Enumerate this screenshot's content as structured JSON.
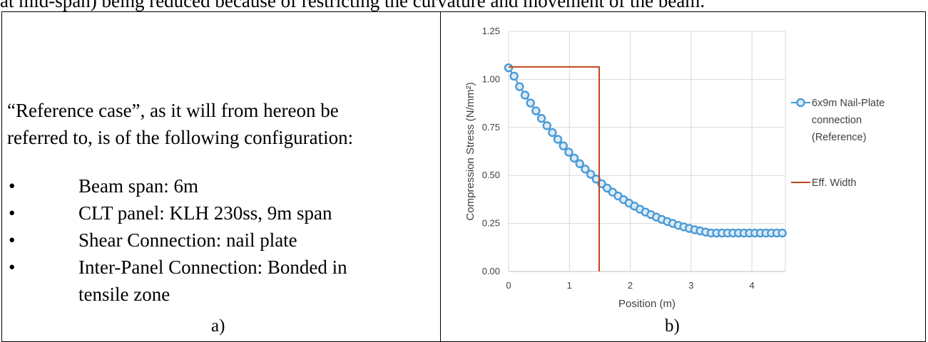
{
  "top_text": "at mid-span) being reduced because of restricting the curvature and movement of the beam.",
  "panel_a": {
    "intro_line1": "“Reference case”, as it will from hereon be",
    "intro_line2": "referred to, is of the following configuration:",
    "bullets": [
      {
        "line1": "Beam span: 6m",
        "line2": ""
      },
      {
        "line1": "CLT panel: KLH 230ss, 9m span",
        "line2": ""
      },
      {
        "line1": "Shear Connection: nail plate",
        "line2": ""
      },
      {
        "line1": "Inter-Panel Connection: Bonded in",
        "line2": "tensile zone"
      }
    ],
    "label": "a)"
  },
  "panel_b": {
    "label": "b)"
  },
  "chart_data": {
    "type": "line",
    "xlabel": "Position (m)",
    "ylabel": "Compression Stress (N/mm²)",
    "xlim": [
      0,
      4.55
    ],
    "ylim": [
      0,
      1.25
    ],
    "x_ticks": [
      "0",
      "1",
      "2",
      "3",
      "4"
    ],
    "y_ticks": [
      "0.00",
      "0.25",
      "0.50",
      "0.75",
      "1.00",
      "1.25"
    ],
    "grid": true,
    "legend_position": "right",
    "series": [
      {
        "name_lines": [
          "6x9m Nail-Plate",
          "connection",
          "(Reference)"
        ],
        "color": "#4a9bd6",
        "marker": "circle",
        "x": [
          0,
          0.09,
          0.18,
          0.27,
          0.36,
          0.45,
          0.54,
          0.63,
          0.72,
          0.81,
          0.9,
          0.99,
          1.08,
          1.17,
          1.26,
          1.35,
          1.44,
          1.53,
          1.62,
          1.71,
          1.8,
          1.89,
          1.98,
          2.07,
          2.16,
          2.25,
          2.34,
          2.43,
          2.52,
          2.61,
          2.7,
          2.79,
          2.88,
          2.97,
          3.06,
          3.15,
          3.24,
          3.33,
          3.42,
          3.51,
          3.6,
          3.69,
          3.78,
          3.87,
          3.96,
          4.05,
          4.14,
          4.23,
          4.32,
          4.41,
          4.5
        ],
        "values": [
          1.06,
          1.017,
          0.962,
          0.918,
          0.877,
          0.836,
          0.797,
          0.759,
          0.723,
          0.688,
          0.654,
          0.621,
          0.59,
          0.561,
          0.533,
          0.506,
          0.481,
          0.457,
          0.434,
          0.413,
          0.393,
          0.374,
          0.356,
          0.34,
          0.324,
          0.309,
          0.296,
          0.283,
          0.271,
          0.26,
          0.25,
          0.24,
          0.232,
          0.224,
          0.217,
          0.211,
          0.205,
          0.2,
          0.2,
          0.2,
          0.2,
          0.2,
          0.2,
          0.2,
          0.2,
          0.2,
          0.2,
          0.2,
          0.2,
          0.2,
          0.2
        ]
      },
      {
        "name_lines": [
          "Eff. Width"
        ],
        "color": "#c0441a",
        "marker": "none",
        "x": [
          0,
          1.49,
          1.49
        ],
        "values": [
          1.065,
          1.065,
          0
        ]
      }
    ]
  }
}
